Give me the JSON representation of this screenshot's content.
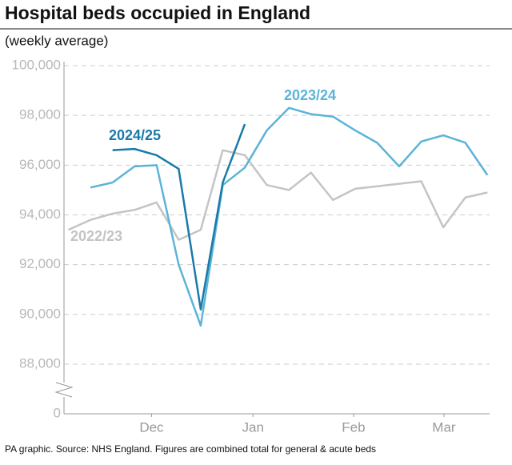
{
  "chart_data": {
    "type": "line",
    "title": "Hospital beds occupied in England",
    "subtitle": "(weekly average)",
    "source": "PA graphic. Source: NHS England. Figures are combined total for general & acute beds",
    "x": [
      0,
      1,
      2,
      3,
      4,
      5,
      6,
      7,
      8,
      9,
      10,
      11,
      12,
      13,
      14,
      15,
      16,
      17,
      18,
      19
    ],
    "xlim": [
      -0.2,
      19.1
    ],
    "xticks": [
      {
        "value": 3.77,
        "label": "Dec"
      },
      {
        "value": 8.37,
        "label": "Jan"
      },
      {
        "value": 12.93,
        "label": "Feb"
      },
      {
        "value": 17.03,
        "label": "Mar"
      }
    ],
    "ylim": [
      88000,
      100000
    ],
    "yticks": [
      0,
      {
        "value": 88000,
        "label": "88,000"
      },
      {
        "value": 90000,
        "label": "90,000"
      },
      {
        "value": 92000,
        "label": "92,000"
      },
      {
        "value": 94000,
        "label": "94,000"
      },
      {
        "value": 96000,
        "label": "96,000"
      },
      {
        "value": 98000,
        "label": "98,000"
      },
      {
        "value": 100000,
        "label": "100,000"
      }
    ],
    "axis_break": true,
    "grid": true,
    "series": [
      {
        "name": "2022/23",
        "color": "#c4c4c4",
        "values": [
          93400,
          93800,
          94050,
          94200,
          94500,
          93000,
          93400,
          96600,
          96400,
          95200,
          95000,
          95700,
          94600,
          95050,
          95150,
          95250,
          95350,
          93500,
          94700,
          94900
        ]
      },
      {
        "name": "2023/24",
        "color": "#5bb4d8",
        "values": [
          null,
          95100,
          95300,
          95950,
          96000,
          92000,
          89550,
          95200,
          95900,
          97400,
          98300,
          98050,
          97950,
          97400,
          96900,
          95950,
          96950,
          97200,
          96900,
          95600
        ]
      },
      {
        "name": "2024/25",
        "color": "#1a7aa8",
        "values": [
          null,
          null,
          96600,
          96650,
          96400,
          95850,
          90200,
          95300,
          97650,
          null,
          null,
          null,
          null,
          null,
          null,
          null,
          null,
          null,
          null,
          null
        ]
      }
    ]
  }
}
